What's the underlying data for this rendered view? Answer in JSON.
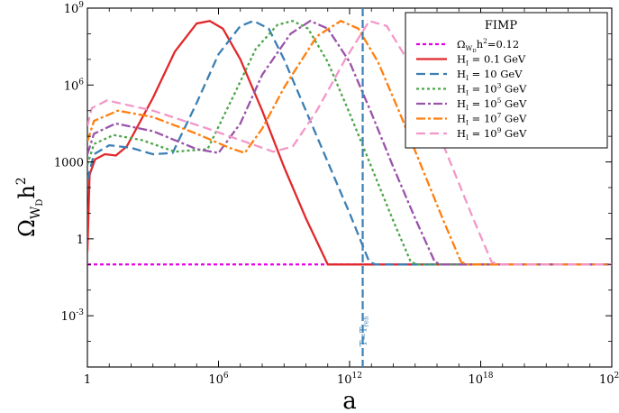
{
  "chart_data": {
    "type": "line",
    "title": "",
    "xlabel": "a",
    "ylabel": {
      "main": "Ω",
      "sub": "W",
      "subsub": "D",
      "tail": "h",
      "sup": "2"
    },
    "xscale": "log",
    "yscale": "log",
    "xlim_exp": [
      0,
      24
    ],
    "ylim_exp": [
      -5,
      9
    ],
    "xticks": [
      {
        "exp": 0,
        "base": "1",
        "sup": ""
      },
      {
        "exp": 6,
        "base": "10",
        "sup": "6"
      },
      {
        "exp": 12,
        "base": "10",
        "sup": "12"
      },
      {
        "exp": 18,
        "base": "10",
        "sup": "18"
      },
      {
        "exp": 24,
        "base": "10",
        "sup": "24"
      }
    ],
    "yticks": [
      {
        "exp": 9,
        "base": "10",
        "sup": "9"
      },
      {
        "exp": 6,
        "base": "10",
        "sup": "6"
      },
      {
        "exp": 3,
        "base": "1000",
        "sup": ""
      },
      {
        "exp": 0,
        "base": "1",
        "sup": ""
      },
      {
        "exp": -3,
        "base": "10",
        "sup": "-3"
      }
    ],
    "legend": {
      "title": "FIMP",
      "position": "top-right"
    },
    "reference_line": {
      "y_exp": -1,
      "label_pre": "Ω",
      "label_sub": "W",
      "label_subsub": "D",
      "label_post": "h",
      "label_sup": "2",
      "label_tail": "=0.12",
      "color": "#e500e5",
      "dash": "4,3"
    },
    "vline": {
      "x_exp": 12.6,
      "label_main": "T=T",
      "label_sub": "reh",
      "color": "#3a7fb5"
    },
    "series": [
      {
        "label_pre": "H",
        "label_sub": "I",
        "label_mid": " = 0.1 GeV",
        "label_sup": "",
        "label_tail": "",
        "color": "#e2282b",
        "dash": "",
        "points": [
          [
            0.0,
            -0.5
          ],
          [
            0.1,
            2.5
          ],
          [
            0.35,
            3.1
          ],
          [
            0.8,
            3.3
          ],
          [
            1.3,
            3.25
          ],
          [
            1.8,
            3.6
          ],
          [
            3,
            5.5
          ],
          [
            4,
            7.3
          ],
          [
            5,
            8.4
          ],
          [
            5.6,
            8.5
          ],
          [
            6.2,
            8.2
          ],
          [
            7,
            7.0
          ],
          [
            8,
            5.0
          ],
          [
            9,
            2.8
          ],
          [
            10,
            0.8
          ],
          [
            11,
            -1.0
          ],
          [
            11.3,
            -1.0
          ],
          [
            12.2,
            -1.0
          ],
          [
            25,
            -1.0
          ]
        ]
      },
      {
        "label_pre": "H",
        "label_sub": "I",
        "label_mid": " = 10 GeV",
        "label_sup": "",
        "label_tail": "",
        "color": "#3a7fb5",
        "dash": "10,5",
        "points": [
          [
            0.0,
            2.3
          ],
          [
            0.3,
            3.3
          ],
          [
            1,
            3.65
          ],
          [
            2,
            3.55
          ],
          [
            3,
            3.3
          ],
          [
            3.9,
            3.35
          ],
          [
            5,
            5.3
          ],
          [
            6,
            7.2
          ],
          [
            7,
            8.3
          ],
          [
            7.6,
            8.5
          ],
          [
            8.3,
            8.2
          ],
          [
            9,
            7.0
          ],
          [
            10,
            5.0
          ],
          [
            11,
            3.0
          ],
          [
            12,
            1.0
          ],
          [
            12.9,
            -0.9
          ],
          [
            13.2,
            -1.0
          ],
          [
            25,
            -1.0
          ]
        ]
      },
      {
        "label_pre": "H",
        "label_sub": "I",
        "label_mid": " = 10",
        "label_sup": "3",
        "label_tail": " GeV",
        "color": "#4da64a",
        "dash": "3,3",
        "points": [
          [
            0.0,
            2.9
          ],
          [
            0.3,
            3.7
          ],
          [
            1.2,
            4.05
          ],
          [
            2.5,
            3.85
          ],
          [
            4,
            3.4
          ],
          [
            5.5,
            3.5
          ],
          [
            6.7,
            5.6
          ],
          [
            7.7,
            7.4
          ],
          [
            8.7,
            8.35
          ],
          [
            9.4,
            8.5
          ],
          [
            10.1,
            8.2
          ],
          [
            11,
            6.9
          ],
          [
            12,
            4.9
          ],
          [
            13,
            2.8
          ],
          [
            14,
            0.7
          ],
          [
            14.8,
            -0.9
          ],
          [
            15.1,
            -1.0
          ],
          [
            25,
            -1.0
          ]
        ]
      },
      {
        "label_pre": "H",
        "label_sub": "I",
        "label_mid": " = 10",
        "label_sup": "5",
        "label_tail": " GeV",
        "color": "#9a53a9",
        "dash": "10,3,3,3",
        "points": [
          [
            0.0,
            3.3
          ],
          [
            0.3,
            4.1
          ],
          [
            1.3,
            4.5
          ],
          [
            3,
            4.2
          ],
          [
            5,
            3.5
          ],
          [
            6,
            3.35
          ],
          [
            7,
            4.5
          ],
          [
            8,
            6.4
          ],
          [
            9.3,
            8.0
          ],
          [
            10.2,
            8.5
          ],
          [
            11,
            8.2
          ],
          [
            12,
            6.9
          ],
          [
            13,
            4.9
          ],
          [
            14,
            2.8
          ],
          [
            15,
            0.8
          ],
          [
            15.9,
            -0.9
          ],
          [
            16.2,
            -1.0
          ],
          [
            25,
            -1.0
          ]
        ]
      },
      {
        "label_pre": "H",
        "label_sub": "I",
        "label_mid": " = 10",
        "label_sup": "7",
        "label_tail": " GeV",
        "color": "#ff7f0e",
        "dash": "10,3,3,3",
        "points": [
          [
            0.0,
            3.8
          ],
          [
            0.3,
            4.6
          ],
          [
            1.4,
            5.0
          ],
          [
            3,
            4.75
          ],
          [
            5,
            4.1
          ],
          [
            6.5,
            3.55
          ],
          [
            7.2,
            3.35
          ],
          [
            8,
            4.3
          ],
          [
            9,
            5.9
          ],
          [
            10.5,
            7.9
          ],
          [
            11.6,
            8.5
          ],
          [
            12.4,
            8.2
          ],
          [
            13.3,
            6.9
          ],
          [
            14.3,
            4.9
          ],
          [
            15.3,
            2.8
          ],
          [
            16.3,
            0.7
          ],
          [
            17.1,
            -0.9
          ],
          [
            17.4,
            -1.0
          ],
          [
            25,
            -1.0
          ]
        ]
      },
      {
        "label_pre": "H",
        "label_sub": "I",
        "label_mid": " = 10",
        "label_sup": "9",
        "label_tail": " GeV",
        "color": "#f397c8",
        "dash": "10,5",
        "points": [
          [
            0.0,
            4.4
          ],
          [
            0.2,
            5.1
          ],
          [
            0.9,
            5.4
          ],
          [
            3,
            5.0
          ],
          [
            5.5,
            4.3
          ],
          [
            7.5,
            3.7
          ],
          [
            8.5,
            3.4
          ],
          [
            9.4,
            3.6
          ],
          [
            10.5,
            5.0
          ],
          [
            11.8,
            7.0
          ],
          [
            12.9,
            8.5
          ],
          [
            13.7,
            8.3
          ],
          [
            14.7,
            6.9
          ],
          [
            15.7,
            4.9
          ],
          [
            16.7,
            2.8
          ],
          [
            17.7,
            0.7
          ],
          [
            18.5,
            -0.9
          ],
          [
            18.8,
            -1.0
          ],
          [
            25,
            -1.0
          ]
        ]
      }
    ]
  }
}
